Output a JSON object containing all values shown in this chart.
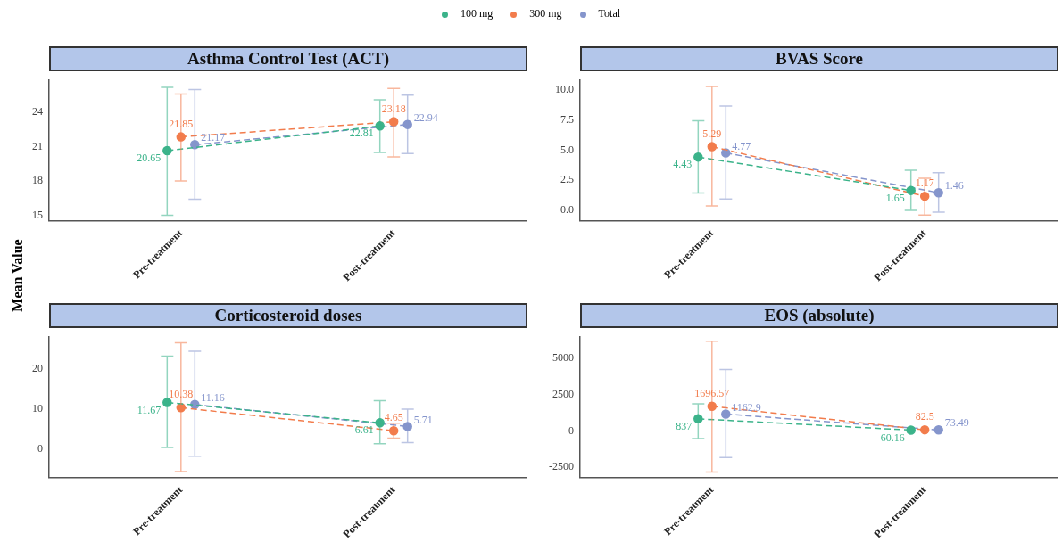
{
  "chart_data": [
    {
      "type": "line",
      "title": "Asthma Control Test (ACT)",
      "ylabel": "Mean Value",
      "categories": [
        "Pre-treatment",
        "Post-treatment"
      ],
      "ylim": [
        14.5,
        26.8
      ],
      "yticks": [
        15,
        18,
        21,
        24
      ],
      "legend": "top",
      "marker": "circle",
      "line_style": "dashed",
      "data_labels": true,
      "grid": false,
      "series": [
        {
          "name": "100 mg",
          "color": "#3bb38a",
          "values": [
            20.65,
            22.81
          ],
          "errors": [
            [
              15.0,
              26.2
            ],
            [
              20.5,
              25.1
            ]
          ]
        },
        {
          "name": "300 mg",
          "color": "#f27c4c",
          "values": [
            21.85,
            23.18
          ],
          "errors": [
            [
              18.0,
              25.6
            ],
            [
              20.1,
              26.1
            ]
          ]
        },
        {
          "name": "Total",
          "color": "#8595cc",
          "values": [
            21.17,
            22.94
          ],
          "errors": [
            [
              16.4,
              26.0
            ],
            [
              20.4,
              25.5
            ]
          ]
        }
      ]
    },
    {
      "type": "line",
      "title": "BVAS Score",
      "categories": [
        "Pre-treatment",
        "Post-treatment"
      ],
      "ylim": [
        -0.88,
        10.8
      ],
      "yticks": [
        {
          "value": 0,
          "label": "0.0"
        },
        {
          "value": 2.5,
          "label": "2.5"
        },
        {
          "value": 5,
          "label": "5.0"
        },
        {
          "value": 7.5,
          "label": "7.5"
        },
        {
          "value": 10,
          "label": "10.0"
        }
      ],
      "marker": "circle",
      "line_style": "dashed",
      "data_labels": true,
      "grid": false,
      "series": [
        {
          "color": "#3bb38a",
          "values": [
            4.43,
            1.65
          ],
          "errors": [
            [
              1.44,
              7.44
            ],
            [
              0,
              3.33
            ]
          ]
        },
        {
          "color": "#f27c4c",
          "values": [
            5.29,
            1.17
          ],
          "errors": [
            [
              0.36,
              10.3
            ],
            [
              -0.39,
              2.66
            ]
          ]
        },
        {
          "color": "#8595cc",
          "values": [
            4.77,
            1.46
          ],
          "errors": [
            [
              0.93,
              8.66
            ],
            [
              -0.16,
              3.13
            ]
          ]
        }
      ]
    },
    {
      "type": "line",
      "title": "Corticosteroid doses",
      "categories": [
        "Pre-treatment",
        "Post-treatment"
      ],
      "ylim": [
        -7,
        27.9
      ],
      "yticks": [
        0,
        10,
        20
      ],
      "marker": "circle",
      "line_style": "dashed",
      "data_labels": true,
      "grid": false,
      "series": [
        {
          "color": "#3bb38a",
          "values": [
            11.67,
            6.61
          ],
          "errors": [
            [
              0.5,
              23.2
            ],
            [
              1.4,
              12.1
            ]
          ]
        },
        {
          "color": "#f27c4c",
          "values": [
            10.38,
            4.65
          ],
          "errors": [
            [
              -5.5,
              26.5
            ],
            [
              2.8,
              6.5
            ]
          ]
        },
        {
          "color": "#8595cc",
          "values": [
            11.16,
            5.71
          ],
          "errors": [
            [
              -1.7,
              24.4
            ],
            [
              1.7,
              10.0
            ]
          ]
        }
      ]
    },
    {
      "type": "line",
      "title": "EOS (absolute)",
      "categories": [
        "Pre-treatment",
        "Post-treatment"
      ],
      "ylim": [
        -3210,
        6460
      ],
      "yticks": [
        -2500,
        0,
        2500,
        5000
      ],
      "marker": "circle",
      "line_style": "dashed",
      "data_labels": true,
      "grid": false,
      "series": [
        {
          "color": "#3bb38a",
          "values": [
            837,
            60.16
          ],
          "errors": [
            [
              -520,
              1875
            ],
            null
          ]
        },
        {
          "color": "#f27c4c",
          "values": [
            1696.57,
            82.5
          ],
          "errors": [
            [
              -2820,
              6180
            ],
            null
          ]
        },
        {
          "color": "#8595cc",
          "values": [
            1162.9,
            73.49
          ],
          "errors": [
            [
              -1830,
              4230
            ],
            null
          ]
        }
      ]
    }
  ]
}
